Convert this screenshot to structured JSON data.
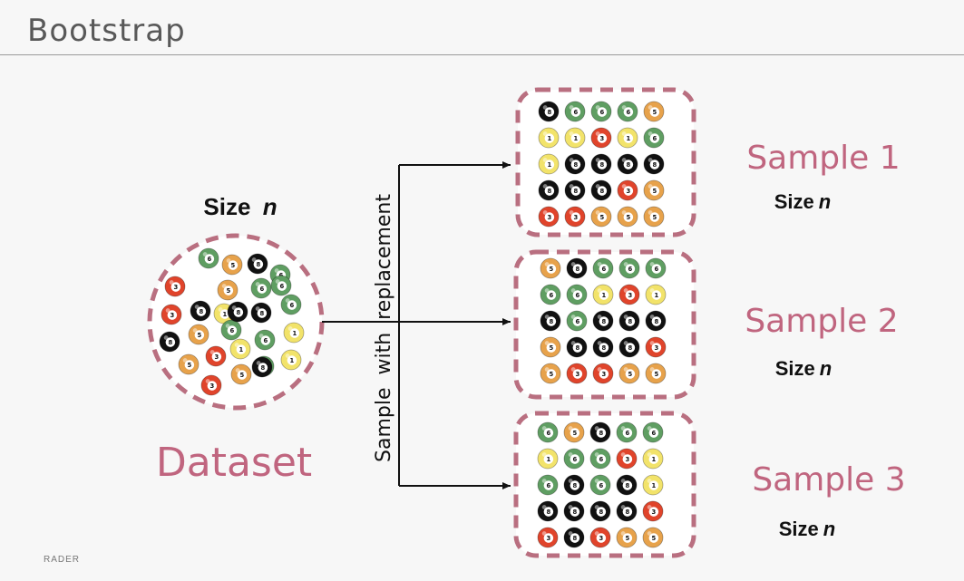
{
  "slide": {
    "title": "Bootstrap",
    "footer": "RADER"
  },
  "dataset": {
    "size_prefix": "Size",
    "size_var": "n",
    "label": "Dataset"
  },
  "arrow_label": "Sample  with  replacement",
  "samples": [
    {
      "label": "Sample 1",
      "size_prefix": "Size",
      "size_var": "n"
    },
    {
      "label": "Sample 2",
      "size_prefix": "Size",
      "size_var": "n"
    },
    {
      "label": "Sample 3",
      "size_prefix": "Size",
      "size_var": "n"
    }
  ],
  "colors": {
    "accent": "#c0657f",
    "dash": "#b96f80",
    "ball_black": "#111111",
    "ball_green": "#5f9e62",
    "ball_orange": "#e7a24b",
    "ball_red": "#e0442b",
    "ball_yellow": "#f2e36a"
  },
  "ball_numbers": {
    "black": "8",
    "green": "6",
    "orange": "5",
    "red": "3",
    "yellow": "1"
  },
  "dataset_balls": [
    "green",
    "orange",
    "black",
    "green",
    "red",
    "orange",
    "green",
    "green",
    "red",
    "black",
    "yellow",
    "black",
    "green",
    "orange",
    "black",
    "yellow",
    "green",
    "yellow",
    "red",
    "orange",
    "green",
    "yellow",
    "orange",
    "black",
    "black",
    "red",
    "green"
  ],
  "sample_grids": [
    [
      [
        "black",
        "green",
        "green",
        "green",
        "orange"
      ],
      [
        "yellow",
        "yellow",
        "red",
        "yellow",
        "green"
      ],
      [
        "yellow",
        "black",
        "black",
        "black",
        "black"
      ],
      [
        "black",
        "black",
        "black",
        "red",
        "orange"
      ],
      [
        "red",
        "red",
        "orange",
        "orange",
        "orange"
      ]
    ],
    [
      [
        "orange",
        "black",
        "green",
        "green",
        "green"
      ],
      [
        "green",
        "green",
        "yellow",
        "red",
        "yellow"
      ],
      [
        "black",
        "green",
        "black",
        "black",
        "black"
      ],
      [
        "orange",
        "black",
        "black",
        "black",
        "red"
      ],
      [
        "orange",
        "red",
        "red",
        "orange",
        "orange"
      ]
    ],
    [
      [
        "green",
        "orange",
        "black",
        "green",
        "green"
      ],
      [
        "yellow",
        "green",
        "green",
        "red",
        "yellow"
      ],
      [
        "green",
        "black",
        "green",
        "black",
        "yellow"
      ],
      [
        "black",
        "black",
        "black",
        "black",
        "red"
      ],
      [
        "red",
        "black",
        "red",
        "orange",
        "orange"
      ]
    ]
  ]
}
